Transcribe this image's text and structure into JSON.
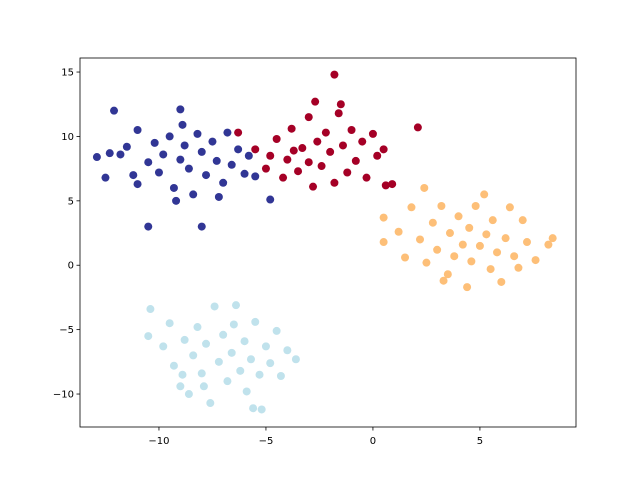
{
  "chart_data": {
    "type": "scatter",
    "xlim": [
      -13.69,
      9.49
    ],
    "ylim": [
      -12.56,
      16.09
    ],
    "xticks": [
      {
        "value": -10,
        "label": "−10"
      },
      {
        "value": -5,
        "label": "−5"
      },
      0,
      5
    ],
    "yticks": [
      {
        "value": -10,
        "label": "−10"
      },
      {
        "value": -5,
        "label": "−5"
      },
      0,
      5,
      10,
      15
    ],
    "grid": false,
    "series": [
      {
        "color": "#313695",
        "x": [
          -12.9,
          -12.3,
          -11.8,
          -12.1,
          -11.5,
          -11.2,
          -12.5,
          -11.0,
          -10.5,
          -10.2,
          -10.0,
          -9.8,
          -9.5,
          -9.3,
          -9.0,
          -9.0,
          -8.8,
          -8.6,
          -8.4,
          -8.2,
          -8.0,
          -8.0,
          -7.8,
          -7.5,
          -7.3,
          -7.0,
          -6.8,
          -6.6,
          -6.3,
          -6.0,
          -5.8,
          -5.5,
          -4.8,
          -10.5,
          -9.2,
          -11.0,
          -7.2,
          -8.9
        ],
        "values": [
          8.4,
          8.7,
          8.6,
          12.0,
          9.2,
          7.0,
          6.8,
          6.3,
          8.0,
          9.5,
          7.2,
          8.6,
          10.0,
          6.0,
          12.1,
          8.2,
          9.3,
          7.5,
          5.5,
          10.2,
          8.8,
          3.0,
          7.0,
          9.6,
          8.1,
          6.4,
          10.3,
          7.8,
          9.0,
          7.1,
          8.5,
          6.9,
          5.1,
          3.0,
          5.0,
          10.5,
          5.3,
          10.9
        ]
      },
      {
        "color": "#a50026",
        "x": [
          -6.3,
          -5.5,
          -5.0,
          -4.8,
          -4.5,
          -4.2,
          -4.0,
          -3.8,
          -3.5,
          -3.3,
          -3.0,
          -3.0,
          -2.8,
          -2.6,
          -2.4,
          -2.2,
          -2.0,
          -1.8,
          -1.8,
          -1.6,
          -1.4,
          -1.2,
          -1.0,
          -0.8,
          -0.5,
          -0.3,
          0.0,
          0.2,
          0.5,
          0.6,
          0.9,
          2.1,
          -1.5,
          -3.7,
          -2.7
        ],
        "values": [
          10.3,
          9.0,
          7.5,
          8.5,
          9.8,
          6.8,
          8.2,
          10.6,
          7.3,
          9.1,
          8.0,
          11.5,
          6.1,
          9.6,
          7.7,
          10.3,
          8.8,
          14.8,
          6.4,
          11.8,
          9.3,
          7.2,
          10.5,
          8.1,
          9.6,
          6.8,
          10.2,
          8.5,
          9.0,
          6.2,
          6.3,
          10.7,
          12.5,
          8.9,
          12.7
        ]
      },
      {
        "color": "#fdbf78",
        "x": [
          0.5,
          0.5,
          1.2,
          1.5,
          1.8,
          2.2,
          2.4,
          2.5,
          2.8,
          3.0,
          3.2,
          3.5,
          3.6,
          3.8,
          4.0,
          4.2,
          4.4,
          4.5,
          4.6,
          4.8,
          5.0,
          5.2,
          5.3,
          5.5,
          5.6,
          5.8,
          6.0,
          6.2,
          6.4,
          6.6,
          7.0,
          7.2,
          7.6,
          8.2,
          8.4,
          3.3,
          6.8
        ],
        "values": [
          3.7,
          1.8,
          2.6,
          0.6,
          4.5,
          2.0,
          6.0,
          0.2,
          3.3,
          1.2,
          4.6,
          -0.7,
          2.5,
          0.7,
          3.8,
          1.6,
          -1.7,
          2.9,
          0.3,
          4.6,
          1.5,
          5.5,
          2.4,
          -0.3,
          3.5,
          1.0,
          -1.3,
          2.1,
          4.5,
          0.7,
          3.5,
          1.8,
          0.4,
          1.6,
          2.1,
          -1.2,
          -0.2
        ]
      },
      {
        "color": "#c0e2ec",
        "x": [
          -10.4,
          -10.5,
          -9.8,
          -9.5,
          -9.3,
          -9.0,
          -8.8,
          -8.6,
          -8.4,
          -8.2,
          -8.0,
          -7.8,
          -7.6,
          -7.4,
          -7.2,
          -7.0,
          -6.8,
          -6.6,
          -6.4,
          -6.2,
          -6.0,
          -5.9,
          -5.7,
          -5.5,
          -5.3,
          -5.2,
          -5.0,
          -4.8,
          -4.5,
          -4.3,
          -4.0,
          -3.6,
          -5.6,
          -7.9,
          -6.5,
          -8.9
        ],
        "values": [
          -3.4,
          -5.5,
          -6.3,
          -4.5,
          -7.8,
          -9.4,
          -5.8,
          -10.0,
          -7.0,
          -4.8,
          -8.4,
          -6.1,
          -10.7,
          -3.2,
          -7.5,
          -5.4,
          -9.0,
          -6.8,
          -3.1,
          -8.2,
          -5.9,
          -9.8,
          -7.3,
          -4.4,
          -8.5,
          -11.2,
          -6.3,
          -7.6,
          -5.1,
          -8.6,
          -6.6,
          -7.3,
          -11.1,
          -9.4,
          -4.6,
          -8.5
        ]
      }
    ]
  }
}
